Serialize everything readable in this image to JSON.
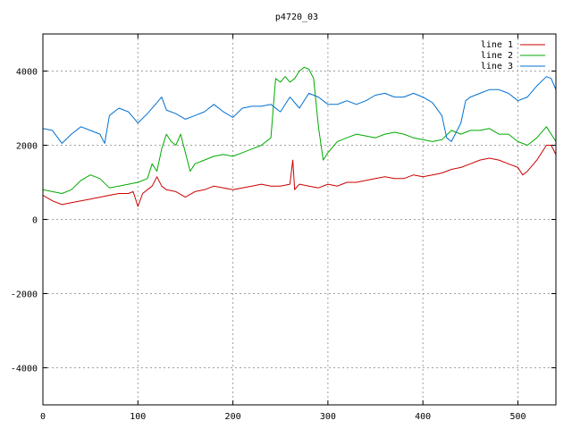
{
  "chart_data": {
    "type": "line",
    "title": "p4720_03",
    "xlabel": "",
    "ylabel": "",
    "xlim": [
      0,
      540
    ],
    "ylim": [
      -5000,
      5000
    ],
    "xticks": [
      0,
      100,
      200,
      300,
      400,
      500
    ],
    "yticks": [
      -4000,
      -2000,
      0,
      2000,
      4000
    ],
    "grid": true,
    "legend_position": "top-right",
    "series": [
      {
        "name": "line 1",
        "color": "#cc0000",
        "x": [
          0,
          10,
          20,
          30,
          40,
          50,
          60,
          70,
          80,
          90,
          95,
          100,
          105,
          110,
          115,
          120,
          125,
          130,
          140,
          150,
          160,
          170,
          180,
          190,
          200,
          210,
          220,
          230,
          240,
          250,
          260,
          263,
          265,
          268,
          270,
          280,
          290,
          300,
          310,
          320,
          330,
          340,
          350,
          360,
          370,
          380,
          390,
          400,
          410,
          420,
          430,
          440,
          450,
          460,
          470,
          480,
          490,
          500,
          505,
          510,
          520,
          530,
          535,
          540
        ],
        "y": [
          650,
          500,
          400,
          450,
          500,
          550,
          600,
          650,
          700,
          700,
          750,
          350,
          700,
          800,
          900,
          1150,
          900,
          800,
          750,
          600,
          750,
          800,
          900,
          850,
          800,
          850,
          900,
          950,
          900,
          900,
          950,
          1600,
          800,
          900,
          950,
          900,
          850,
          950,
          900,
          1000,
          1000,
          1050,
          1100,
          1150,
          1100,
          1100,
          1200,
          1150,
          1200,
          1250,
          1350,
          1400,
          1500,
          1600,
          1650,
          1600,
          1500,
          1400,
          1200,
          1300,
          1600,
          2000,
          2000,
          1750
        ]
      },
      {
        "name": "line 2",
        "color": "#00aa00",
        "x": [
          0,
          10,
          20,
          30,
          40,
          50,
          60,
          70,
          80,
          90,
          100,
          110,
          115,
          120,
          125,
          130,
          135,
          140,
          145,
          150,
          155,
          160,
          170,
          180,
          190,
          200,
          210,
          220,
          230,
          240,
          245,
          250,
          255,
          260,
          265,
          270,
          275,
          280,
          285,
          290,
          295,
          300,
          310,
          320,
          330,
          340,
          350,
          360,
          370,
          380,
          390,
          400,
          410,
          420,
          430,
          440,
          450,
          460,
          470,
          480,
          490,
          500,
          510,
          520,
          530,
          540
        ],
        "y": [
          800,
          750,
          700,
          800,
          1050,
          1200,
          1100,
          850,
          900,
          950,
          1000,
          1100,
          1500,
          1300,
          1900,
          2300,
          2100,
          2000,
          2300,
          1800,
          1300,
          1500,
          1600,
          1700,
          1750,
          1700,
          1800,
          1900,
          2000,
          2200,
          3800,
          3700,
          3850,
          3700,
          3800,
          4000,
          4100,
          4050,
          3800,
          2500,
          1600,
          1800,
          2100,
          2200,
          2300,
          2250,
          2200,
          2300,
          2350,
          2300,
          2200,
          2150,
          2100,
          2150,
          2400,
          2300,
          2400,
          2400,
          2450,
          2300,
          2300,
          2100,
          2000,
          2200,
          2500,
          2100
        ]
      },
      {
        "name": "line 3",
        "color": "#0070d0",
        "x": [
          0,
          10,
          20,
          30,
          40,
          50,
          60,
          65,
          70,
          80,
          90,
          100,
          110,
          120,
          125,
          130,
          140,
          150,
          160,
          170,
          180,
          190,
          200,
          210,
          220,
          230,
          240,
          250,
          260,
          270,
          280,
          290,
          300,
          310,
          320,
          330,
          340,
          350,
          360,
          370,
          380,
          390,
          400,
          410,
          420,
          425,
          430,
          440,
          445,
          450,
          460,
          470,
          480,
          490,
          500,
          510,
          520,
          530,
          535,
          540
        ],
        "y": [
          2450,
          2400,
          2050,
          2300,
          2500,
          2400,
          2300,
          2050,
          2800,
          3000,
          2900,
          2600,
          2850,
          3150,
          3300,
          2950,
          2850,
          2700,
          2800,
          2900,
          3100,
          2900,
          2750,
          3000,
          3050,
          3050,
          3100,
          2900,
          3300,
          3000,
          3400,
          3300,
          3100,
          3100,
          3200,
          3100,
          3200,
          3350,
          3400,
          3300,
          3300,
          3400,
          3300,
          3150,
          2800,
          2200,
          2100,
          2600,
          3200,
          3300,
          3400,
          3500,
          3500,
          3400,
          3200,
          3300,
          3600,
          3850,
          3800,
          3500
        ]
      }
    ]
  }
}
